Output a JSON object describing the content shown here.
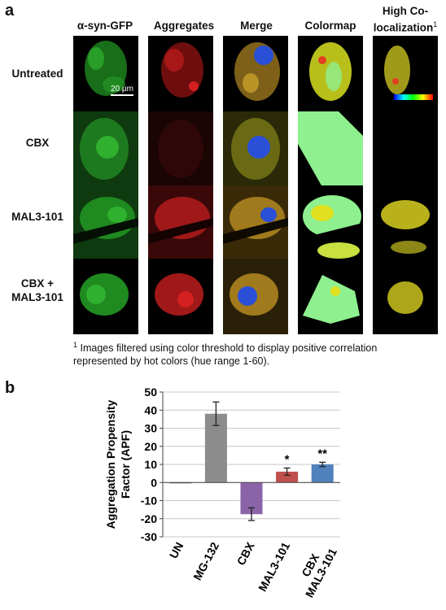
{
  "panel_a": {
    "letter": "a",
    "columns": [
      "α-syn-GFP",
      "Aggregates",
      "Merge",
      "Colormap",
      "High Co-localization"
    ],
    "column_superscript": "1",
    "rows": [
      "Untreated",
      "CBX",
      "MAL3-101",
      "CBX + MAL3-101"
    ],
    "scale_bar": "20 μm",
    "footnote_marker": "1",
    "footnote": "Images filtered using color threshold to display positive correlation represented by hot colors (hue range 1-60).",
    "channel_colors": {
      "gfp": "#22c322",
      "aggregates": "#d42020",
      "merge": "#c8a028",
      "nucleus": "#2a50d8",
      "colormap": "#8ef08e",
      "high": "#f0e020"
    }
  },
  "panel_b": {
    "letter": "b"
  },
  "chart_data": {
    "type": "bar",
    "categories": [
      "UN",
      "MG-132",
      "CBX",
      "MAL3-101",
      "CBX MAL3-101"
    ],
    "values": [
      0,
      38,
      -17.5,
      6,
      10
    ],
    "errors": [
      0,
      6.5,
      3.5,
      2,
      1.2
    ],
    "significance": [
      "",
      "",
      "",
      "*",
      "**"
    ],
    "colors": [
      "#555555",
      "#8c8c8c",
      "#8a63a8",
      "#c0504d",
      "#4f81bd"
    ],
    "ylabel": "Aggregation Propensity Factor (APF)",
    "ylim": [
      -30,
      50
    ],
    "yticks": [
      -30,
      -20,
      -10,
      0,
      10,
      20,
      30,
      40,
      50
    ],
    "grid": true
  }
}
